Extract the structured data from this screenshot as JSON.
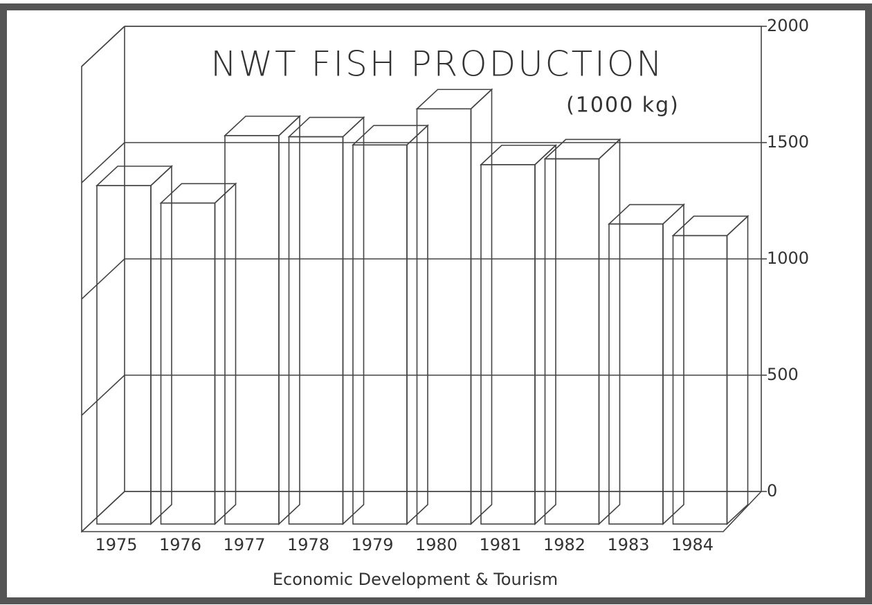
{
  "chart_data": {
    "type": "bar3d",
    "title": "NWT FISH PRODUCTION",
    "subtitle": "(1000 kg)",
    "x_label": "Economic Development & Tourism",
    "categories": [
      "1975",
      "1976",
      "1977",
      "1978",
      "1979",
      "1980",
      "1981",
      "1982",
      "1983",
      "1984"
    ],
    "values": [
      1455,
      1380,
      1670,
      1665,
      1630,
      1785,
      1545,
      1570,
      1290,
      1240
    ],
    "color": "#ffffff",
    "ylim": [
      0,
      2000
    ],
    "yticks": [
      0,
      500,
      1000,
      1500,
      2000
    ],
    "grid": true
  }
}
